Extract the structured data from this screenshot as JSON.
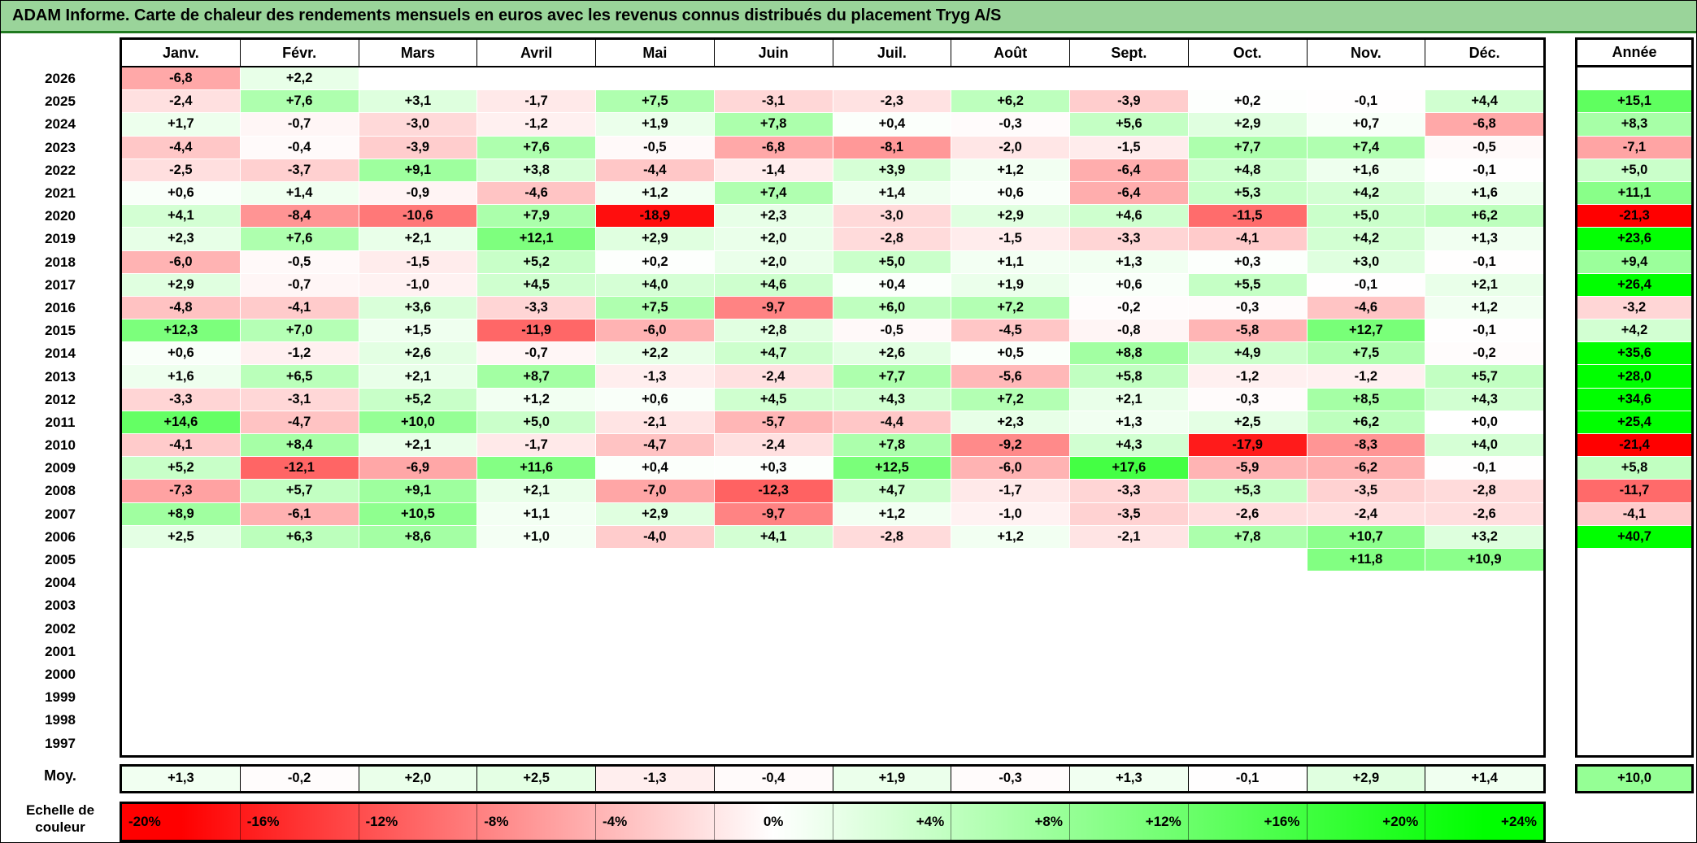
{
  "colors": {
    "title_bg": "#9ad49a",
    "title_underline": "#1f7a1f",
    "grid_border": "#000000",
    "negative_extreme": "#ff0000",
    "zero": "#ffffff",
    "positive_extreme": "#00ff00"
  },
  "chart_data": {
    "type": "heatmap",
    "title": "ADAM Informe. Carte de chaleur des rendements mensuels en euros avec les revenus connus distribués du placement Tryg A/S",
    "columns": [
      "Janv.",
      "Févr.",
      "Mars",
      "Avril",
      "Mai",
      "Juin",
      "Juil.",
      "Août",
      "Sept.",
      "Oct.",
      "Nov.",
      "Déc."
    ],
    "annual_header": "Année",
    "legend_label": "Echelle de couleur",
    "color_scale": {
      "min": -20,
      "max": 24,
      "legend_stops": [
        {
          "label": "-20%",
          "value": -20
        },
        {
          "label": "-16%",
          "value": -16
        },
        {
          "label": "-12%",
          "value": -12
        },
        {
          "label": "-8%",
          "value": -8
        },
        {
          "label": "-4%",
          "value": -4
        },
        {
          "label": "0%",
          "value": 0
        },
        {
          "label": "+4%",
          "value": 4
        },
        {
          "label": "+8%",
          "value": 8
        },
        {
          "label": "+12%",
          "value": 12
        },
        {
          "label": "+16%",
          "value": 16
        },
        {
          "label": "+20%",
          "value": 20
        },
        {
          "label": "+24%",
          "value": 24
        }
      ]
    },
    "rows": [
      {
        "year": "2026",
        "values": [
          -6.8,
          2.2,
          null,
          null,
          null,
          null,
          null,
          null,
          null,
          null,
          null,
          null
        ],
        "annual": null
      },
      {
        "year": "2025",
        "values": [
          -2.4,
          7.6,
          3.1,
          -1.7,
          7.5,
          -3.1,
          -2.3,
          6.2,
          -3.9,
          0.2,
          -0.1,
          4.4
        ],
        "annual": 15.1
      },
      {
        "year": "2024",
        "values": [
          1.7,
          -0.7,
          -3.0,
          -1.2,
          1.9,
          7.8,
          0.4,
          -0.3,
          5.6,
          2.9,
          0.7,
          -6.8
        ],
        "annual": 8.3
      },
      {
        "year": "2023",
        "values": [
          -4.4,
          -0.4,
          -3.9,
          7.6,
          -0.5,
          -6.8,
          -8.1,
          -2.0,
          -1.5,
          7.7,
          7.4,
          -0.5
        ],
        "annual": -7.1
      },
      {
        "year": "2022",
        "values": [
          -2.5,
          -3.7,
          9.1,
          3.8,
          -4.4,
          -1.4,
          3.9,
          1.2,
          -6.4,
          4.8,
          1.6,
          -0.1
        ],
        "annual": 5.0
      },
      {
        "year": "2021",
        "values": [
          0.6,
          1.4,
          -0.9,
          -4.6,
          1.2,
          7.4,
          1.4,
          0.6,
          -6.4,
          5.3,
          4.2,
          1.6
        ],
        "annual": 11.1
      },
      {
        "year": "2020",
        "values": [
          4.1,
          -8.4,
          -10.6,
          7.9,
          -18.9,
          2.3,
          -3.0,
          2.9,
          4.6,
          -11.5,
          5.0,
          6.2
        ],
        "annual": -21.3
      },
      {
        "year": "2019",
        "values": [
          2.3,
          7.6,
          2.1,
          12.1,
          2.9,
          2.0,
          -2.8,
          -1.5,
          -3.3,
          -4.1,
          4.2,
          1.3
        ],
        "annual": 23.6
      },
      {
        "year": "2018",
        "values": [
          -6.0,
          -0.5,
          -1.5,
          5.2,
          0.2,
          2.0,
          5.0,
          1.1,
          1.3,
          0.3,
          3.0,
          -0.1
        ],
        "annual": 9.4
      },
      {
        "year": "2017",
        "values": [
          2.9,
          -0.7,
          -1.0,
          4.5,
          4.0,
          4.6,
          0.4,
          1.9,
          0.6,
          5.5,
          -0.1,
          2.1
        ],
        "annual": 26.4
      },
      {
        "year": "2016",
        "values": [
          -4.8,
          -4.1,
          3.6,
          -3.3,
          7.5,
          -9.7,
          6.0,
          7.2,
          -0.2,
          -0.3,
          -4.6,
          1.2
        ],
        "annual": -3.2
      },
      {
        "year": "2015",
        "values": [
          12.3,
          7.0,
          1.5,
          -11.9,
          -6.0,
          2.8,
          -0.5,
          -4.5,
          -0.8,
          -5.8,
          12.7,
          -0.1
        ],
        "annual": 4.2
      },
      {
        "year": "2014",
        "values": [
          0.6,
          -1.2,
          2.6,
          -0.7,
          2.2,
          4.7,
          2.6,
          0.5,
          8.8,
          4.9,
          7.5,
          -0.2
        ],
        "annual": 35.6
      },
      {
        "year": "2013",
        "values": [
          1.6,
          6.5,
          2.1,
          8.7,
          -1.3,
          -2.4,
          7.7,
          -5.6,
          5.8,
          -1.2,
          -1.2,
          5.7
        ],
        "annual": 28.0
      },
      {
        "year": "2012",
        "values": [
          -3.3,
          -3.1,
          5.2,
          1.2,
          0.6,
          4.5,
          4.3,
          7.2,
          2.1,
          -0.3,
          8.5,
          4.3
        ],
        "annual": 34.6
      },
      {
        "year": "2011",
        "values": [
          14.6,
          -4.7,
          10.0,
          5.0,
          -2.1,
          -5.7,
          -4.4,
          2.3,
          1.3,
          2.5,
          6.2,
          0.0
        ],
        "annual": 25.4
      },
      {
        "year": "2010",
        "values": [
          -4.1,
          8.4,
          2.1,
          -1.7,
          -4.7,
          -2.4,
          7.8,
          -9.2,
          4.3,
          -17.9,
          -8.3,
          4.0
        ],
        "annual": -21.4
      },
      {
        "year": "2009",
        "values": [
          5.2,
          -12.1,
          -6.9,
          11.6,
          0.4,
          0.3,
          12.5,
          -6.0,
          17.6,
          -5.9,
          -6.2,
          -0.1
        ],
        "annual": 5.8
      },
      {
        "year": "2008",
        "values": [
          -7.3,
          5.7,
          9.1,
          2.1,
          -7.0,
          -12.3,
          4.7,
          -1.7,
          -3.3,
          5.3,
          -3.5,
          -2.8
        ],
        "annual": -11.7
      },
      {
        "year": "2007",
        "values": [
          8.9,
          -6.1,
          10.5,
          1.1,
          2.9,
          -9.7,
          1.2,
          -1.0,
          -3.5,
          -2.6,
          -2.4,
          -2.6
        ],
        "annual": -4.1
      },
      {
        "year": "2006",
        "values": [
          2.5,
          6.3,
          8.6,
          1.0,
          -4.0,
          4.1,
          -2.8,
          1.2,
          -2.1,
          7.8,
          10.7,
          3.2
        ],
        "annual": 40.7
      },
      {
        "year": "2005",
        "values": [
          null,
          null,
          null,
          null,
          null,
          null,
          null,
          null,
          null,
          null,
          11.8,
          10.9
        ],
        "annual": null
      },
      {
        "year": "2004",
        "values": [
          null,
          null,
          null,
          null,
          null,
          null,
          null,
          null,
          null,
          null,
          null,
          null
        ],
        "annual": null
      },
      {
        "year": "2003",
        "values": [
          null,
          null,
          null,
          null,
          null,
          null,
          null,
          null,
          null,
          null,
          null,
          null
        ],
        "annual": null
      },
      {
        "year": "2002",
        "values": [
          null,
          null,
          null,
          null,
          null,
          null,
          null,
          null,
          null,
          null,
          null,
          null
        ],
        "annual": null
      },
      {
        "year": "2001",
        "values": [
          null,
          null,
          null,
          null,
          null,
          null,
          null,
          null,
          null,
          null,
          null,
          null
        ],
        "annual": null
      },
      {
        "year": "2000",
        "values": [
          null,
          null,
          null,
          null,
          null,
          null,
          null,
          null,
          null,
          null,
          null,
          null
        ],
        "annual": null
      },
      {
        "year": "1999",
        "values": [
          null,
          null,
          null,
          null,
          null,
          null,
          null,
          null,
          null,
          null,
          null,
          null
        ],
        "annual": null
      },
      {
        "year": "1998",
        "values": [
          null,
          null,
          null,
          null,
          null,
          null,
          null,
          null,
          null,
          null,
          null,
          null
        ],
        "annual": null
      },
      {
        "year": "1997",
        "values": [
          null,
          null,
          null,
          null,
          null,
          null,
          null,
          null,
          null,
          null,
          null,
          null
        ],
        "annual": null
      }
    ],
    "average": {
      "label": "Moy.",
      "values": [
        1.3,
        -0.2,
        2.0,
        2.5,
        -1.3,
        -0.4,
        1.9,
        -0.3,
        1.3,
        -0.1,
        2.9,
        1.4
      ],
      "annual": 10.0
    }
  }
}
